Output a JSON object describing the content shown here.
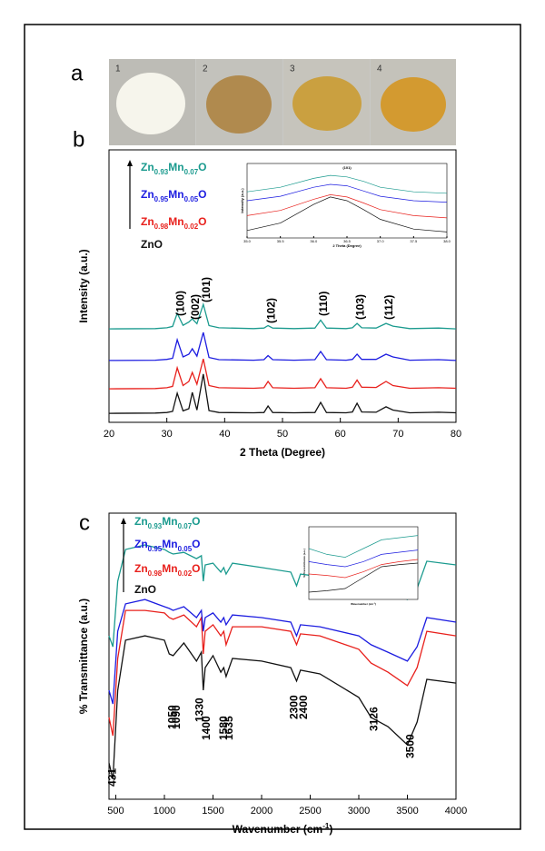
{
  "panels": {
    "a": {
      "label": "a",
      "photo_labels": [
        "1",
        "2",
        "3",
        "4"
      ]
    }
  },
  "chart_data": [
    {
      "type": "line",
      "panel_label": "b",
      "x_label": [
        "2 Theta (Degree)"
      ],
      "y_label": "Intensity (a.u.)",
      "xlim": [
        20,
        80
      ],
      "ylim": [
        0,
        100
      ],
      "xticks": [
        20,
        30,
        40,
        50,
        60,
        70,
        80
      ],
      "legend": true,
      "legend_position": "top-left",
      "x": [
        20,
        28,
        30,
        31,
        31.8,
        32.8,
        33.8,
        34.4,
        35.2,
        36.3,
        37.3,
        39,
        45,
        46.8,
        47.5,
        48.3,
        52,
        55.6,
        56.6,
        57.6,
        61,
        62.1,
        62.9,
        63.7,
        66.2,
        67.9,
        69.1,
        72,
        77,
        80
      ],
      "series": [
        {
          "name": [
            "ZnO"
          ],
          "color": "#111111",
          "values": [
            3.3,
            3.4,
            3.6,
            4,
            10.7,
            4.2,
            5,
            11,
            4.5,
            17.7,
            4.3,
            3.6,
            3.5,
            3.6,
            6,
            3.6,
            3.5,
            3.6,
            7.3,
            3.6,
            3.5,
            3.8,
            7,
            3.8,
            3.7,
            5.7,
            4.5,
            3.5,
            3.7,
            3.5
          ]
        },
        {
          "name": [
            "Zn",
            "0.98",
            "Mn",
            "0.02",
            "O"
          ],
          "color": "#e8201c",
          "values": [
            12.3,
            12.4,
            12.7,
            13.2,
            20,
            13.5,
            15,
            18.3,
            14,
            23.3,
            13.5,
            12.7,
            12.5,
            12.7,
            15,
            12.7,
            12.5,
            12.7,
            16,
            12.7,
            12.5,
            12.9,
            15.5,
            12.9,
            12.8,
            15,
            13.5,
            12.5,
            12.7,
            12.5
          ]
        },
        {
          "name": [
            "Zn",
            "0.95",
            "Mn",
            "0.05",
            "O"
          ],
          "color": "#1c1ce0",
          "values": [
            22.7,
            22.8,
            23.1,
            23.5,
            30.3,
            24,
            25,
            27,
            24.3,
            33,
            23.8,
            23,
            22.8,
            23,
            24.5,
            23,
            22.8,
            23,
            26,
            23,
            22.8,
            23.1,
            25,
            23.1,
            23.1,
            25,
            24,
            22.8,
            23,
            22.7
          ]
        },
        {
          "name": [
            "Zn",
            "0.93",
            "Mn",
            "0.07",
            "O"
          ],
          "color": "#1a9a8e",
          "values": [
            34.3,
            34.4,
            34.7,
            35.2,
            40,
            35.6,
            36.8,
            38,
            36.2,
            43.3,
            35.5,
            34.7,
            34.4,
            34.6,
            35.5,
            34.6,
            34.4,
            34.6,
            37.5,
            34.6,
            34.4,
            34.7,
            36.3,
            34.7,
            34.6,
            36.3,
            35.3,
            34.4,
            34.6,
            34.3
          ]
        }
      ],
      "annotations": [
        {
          "text": "(100)",
          "x": 31.8
        },
        {
          "text": "(002)",
          "x": 34.4
        },
        {
          "text": "(101)",
          "x": 36.3
        },
        {
          "text": "(102)",
          "x": 47.5
        },
        {
          "text": "(110)",
          "x": 56.6
        },
        {
          "text": "(103)",
          "x": 62.9
        },
        {
          "text": "(112)",
          "x": 67.9
        }
      ]
    },
    {
      "type": "line",
      "title": "(101)",
      "x_label": [
        "2 Theta (Degree)"
      ],
      "y_label": "Intensity (a.u.)",
      "xlim": [
        35,
        38
      ],
      "ylim": [
        0,
        100
      ],
      "xticks": [
        {
          "value": 35,
          "label": "35.0"
        },
        {
          "value": 35.5,
          "label": "35.5"
        },
        {
          "value": 36,
          "label": "36.0"
        },
        {
          "value": 36.5,
          "label": "36.5"
        },
        {
          "value": 37,
          "label": "37.0"
        },
        {
          "value": 37.5,
          "label": "37.5"
        },
        {
          "value": 38,
          "label": "38.0"
        }
      ],
      "x": [
        35,
        35.5,
        36,
        36.25,
        36.5,
        36.75,
        37,
        37.5,
        38
      ],
      "series": [
        {
          "color": "#111111",
          "values": [
            10,
            20,
            45,
            55,
            50,
            38,
            25,
            12,
            8
          ]
        },
        {
          "color": "#e8201c",
          "values": [
            30,
            37,
            52,
            58,
            55,
            47,
            38,
            30,
            27
          ]
        },
        {
          "color": "#1c1ce0",
          "values": [
            50,
            56,
            68,
            72,
            70,
            63,
            56,
            50,
            48
          ]
        },
        {
          "color": "#1a9a8e",
          "values": [
            62,
            68,
            80,
            84,
            82,
            76,
            68,
            62,
            60
          ]
        }
      ]
    },
    {
      "type": "line",
      "panel_label": "c",
      "x_label": [
        "Wavenumber (cm",
        "-1",
        ")"
      ],
      "y_label": "% Transmittance (a.u.)",
      "xlim": [
        430,
        4000
      ],
      "ylim": [
        0,
        100
      ],
      "xticks": [
        500,
        1000,
        1500,
        2000,
        2500,
        3000,
        3500,
        4000
      ],
      "legend": true,
      "legend_position": "top-left",
      "x": [
        430,
        470,
        520,
        600,
        800,
        1000,
        1050,
        1090,
        1200,
        1330,
        1380,
        1400,
        1420,
        1500,
        1580,
        1610,
        1635,
        1700,
        2000,
        2300,
        2360,
        2400,
        2600,
        3000,
        3126,
        3300,
        3500,
        3600,
        3700,
        4000
      ],
      "series": [
        {
          "name": [
            "ZnO"
          ],
          "color": "#111111",
          "values": [
            12.7,
            7,
            38,
            55.6,
            57.1,
            55.6,
            50.8,
            50.2,
            54.6,
            48.3,
            51.4,
            38.1,
            46,
            50.2,
            44.4,
            46,
            42.9,
            49.2,
            48.3,
            46,
            41.3,
            45.1,
            43.8,
            35.6,
            28.6,
            25.4,
            19,
            27,
            41.9,
            40.6
          ]
        },
        {
          "name": [
            "Zn",
            "0.98",
            "Mn",
            "0.02",
            "O"
          ],
          "color": "#e8201c",
          "values": [
            28.6,
            22.2,
            49.2,
            66,
            66,
            65.1,
            63.5,
            62.9,
            64.4,
            60.3,
            63.5,
            50.8,
            58.7,
            61,
            57.1,
            58.7,
            54,
            60.3,
            60.3,
            58.7,
            54,
            57.8,
            57.1,
            52.4,
            47.6,
            44.4,
            39.7,
            46,
            58.7,
            57.1
          ]
        },
        {
          "name": [
            "Zn",
            "0.95",
            "Mn",
            "0.05",
            "O"
          ],
          "color": "#1c1ce0",
          "values": [
            38.1,
            33.3,
            58.7,
            68.3,
            69.8,
            67.3,
            66.7,
            66,
            67.3,
            63.5,
            66,
            58.7,
            63.5,
            65.1,
            61.9,
            63.5,
            61,
            64.4,
            63.5,
            61.9,
            57.1,
            61,
            60.3,
            57.1,
            54,
            51.4,
            48.3,
            53.3,
            63.5,
            61.9
          ]
        },
        {
          "name": [
            "Zn",
            "0.93",
            "Mn",
            "0.07",
            "O"
          ],
          "color": "#1a9a8e",
          "values": [
            57.1,
            53.3,
            76.2,
            87.3,
            88.9,
            87.3,
            86.3,
            85.7,
            86.3,
            84.1,
            85.1,
            76.2,
            81.9,
            82.5,
            79.4,
            81,
            78.7,
            82.5,
            81,
            79.4,
            74.6,
            78.7,
            77.8,
            76.2,
            74.6,
            73,
            69.8,
            73.7,
            83.2,
            81.9
          ]
        }
      ],
      "annotations": [
        {
          "text": "431",
          "x": 431
        },
        {
          "text": "1050",
          "x": 1050
        },
        {
          "text": "1090",
          "x": 1090
        },
        {
          "text": "1330",
          "x": 1330
        },
        {
          "text": "1400",
          "x": 1400
        },
        {
          "text": "1580",
          "x": 1580
        },
        {
          "text": "1635",
          "x": 1635
        },
        {
          "text": "2300",
          "x": 2300
        },
        {
          "text": "2400",
          "x": 2400
        },
        {
          "text": "3126",
          "x": 3126
        },
        {
          "text": "3500",
          "x": 3500
        }
      ]
    },
    {
      "type": "line",
      "x_label": [
        "Wavenumber (cm",
        "-1",
        ")"
      ],
      "y_label": "% Transmittance (a.u.)",
      "xlim": [
        400,
        700
      ],
      "ylim": [
        0,
        100
      ],
      "x": [
        400,
        450,
        500,
        550,
        600,
        650,
        700
      ],
      "series": [
        {
          "color": "#111111",
          "values": [
            10,
            12,
            15,
            30,
            45,
            48,
            50
          ]
        },
        {
          "color": "#e8201c",
          "values": [
            35,
            33,
            30,
            38,
            48,
            52,
            55
          ]
        },
        {
          "color": "#1c1ce0",
          "values": [
            52,
            48,
            45,
            52,
            62,
            65,
            68
          ]
        },
        {
          "color": "#1a9a8e",
          "values": [
            70,
            62,
            58,
            70,
            82,
            85,
            88
          ]
        }
      ]
    }
  ]
}
